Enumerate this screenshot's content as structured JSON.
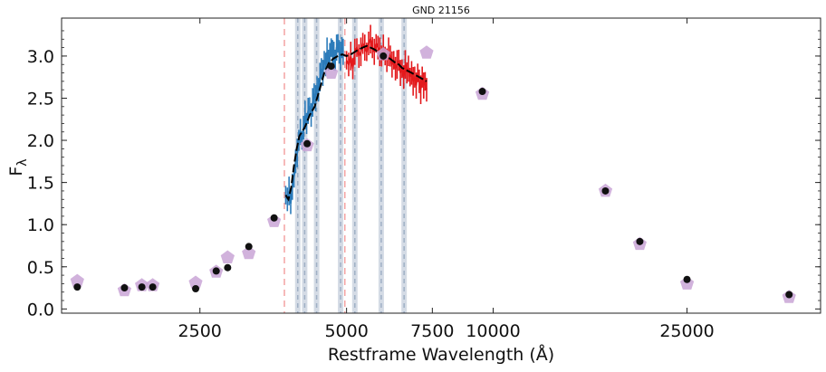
{
  "chart_data": {
    "type": "line",
    "title": "GND 21156",
    "xlabel": "Restframe Wavelength (Å)",
    "ylabel": "F",
    "ylabel_sub": "λ",
    "xscale": "log",
    "xlim": [
      1300,
      47000
    ],
    "ylim": [
      -0.05,
      3.45
    ],
    "xticks": [
      2500,
      5000,
      7500,
      10000,
      25000
    ],
    "xtick_labels": [
      "2500",
      "5000",
      "7500",
      "10000",
      "25000"
    ],
    "yticks": [
      0.0,
      0.5,
      1.0,
      1.5,
      2.0,
      2.5,
      3.0
    ],
    "ytick_labels": [
      "0.0",
      "0.5",
      "1.0",
      "1.5",
      "2.0",
      "2.5",
      "3.0"
    ],
    "colors": {
      "spectrum_blue": "#2b7bba",
      "spectrum_red": "#e3191c",
      "model_line": "#000000",
      "photometry": "#111111",
      "model_photometry": "#c9a4d6",
      "red_dashed": "#f4a3a3",
      "grey_band": "#c5cfdc",
      "grey_dashed": "#9fb0c5"
    },
    "red_dashed_lines": [
      3727,
      4960
    ],
    "grey_lines": [
      3970,
      4102,
      4340,
      4861,
      5200,
      5890,
      6563
    ],
    "series": [
      {
        "name": "spectrum_blue",
        "x": [
          3750,
          3780,
          3810,
          3840,
          3870,
          3900,
          3930,
          3960,
          3990,
          4020,
          4050,
          4080,
          4110,
          4140,
          4170,
          4200,
          4230,
          4260,
          4290,
          4320,
          4350,
          4380,
          4410,
          4440,
          4470,
          4500,
          4530,
          4560,
          4590,
          4620,
          4650,
          4680,
          4710,
          4740,
          4770,
          4800,
          4830,
          4860,
          4890,
          4920
        ],
        "y": [
          1.35,
          1.3,
          1.4,
          1.25,
          1.45,
          1.55,
          1.75,
          1.85,
          2.0,
          2.1,
          2.0,
          2.15,
          2.3,
          2.2,
          2.35,
          2.4,
          2.3,
          2.45,
          2.55,
          2.5,
          2.65,
          2.6,
          2.75,
          2.85,
          2.8,
          2.95,
          2.9,
          3.05,
          2.95,
          3.0,
          3.1,
          3.05,
          3.0,
          2.95,
          3.1,
          3.15,
          3.05,
          3.0,
          3.1,
          3.05
        ]
      },
      {
        "name": "spectrum_red",
        "x": [
          5000,
          5050,
          5100,
          5150,
          5200,
          5250,
          5300,
          5350,
          5400,
          5450,
          5500,
          5550,
          5600,
          5650,
          5700,
          5750,
          5800,
          5850,
          5900,
          5950,
          6000,
          6050,
          6100,
          6150,
          6200,
          6250,
          6300,
          6350,
          6400,
          6450,
          6500,
          6550,
          6600,
          6650,
          6700,
          6750,
          6800,
          6850,
          6900,
          6950,
          7000,
          7050,
          7100,
          7150,
          7200,
          7250,
          7300
        ],
        "y": [
          2.95,
          2.9,
          3.0,
          2.85,
          3.05,
          3.1,
          3.0,
          3.05,
          3.15,
          3.1,
          3.05,
          3.15,
          3.2,
          3.1,
          3.05,
          3.15,
          3.1,
          3.05,
          3.0,
          3.1,
          3.0,
          2.95,
          3.05,
          3.0,
          2.9,
          2.95,
          2.85,
          2.9,
          2.95,
          2.8,
          2.85,
          2.75,
          2.9,
          2.8,
          2.85,
          2.75,
          2.8,
          2.7,
          2.75,
          2.65,
          2.8,
          2.7,
          2.6,
          2.75,
          2.65,
          2.7,
          2.6
        ]
      },
      {
        "name": "model",
        "x": [
          3750,
          3800,
          3850,
          3900,
          3950,
          4000,
          4050,
          4100,
          4150,
          4200,
          4250,
          4300,
          4350,
          4400,
          4450,
          4500,
          4600,
          4700,
          4800,
          4900,
          5000,
          5100,
          5200,
          5300,
          5400,
          5500,
          5600,
          5700,
          5800,
          5900,
          6000,
          6100,
          6200,
          6300,
          6400,
          6500,
          6600,
          6700,
          6800,
          6900,
          7000,
          7100,
          7200,
          7300
        ],
        "y": [
          1.35,
          1.3,
          1.45,
          1.7,
          1.9,
          2.05,
          2.1,
          2.15,
          2.22,
          2.3,
          2.35,
          2.4,
          2.5,
          2.6,
          2.7,
          2.8,
          2.92,
          2.97,
          3.0,
          3.02,
          3.0,
          3.02,
          3.05,
          3.08,
          3.1,
          3.12,
          3.1,
          3.08,
          3.05,
          3.02,
          3.0,
          2.98,
          2.95,
          2.92,
          2.9,
          2.86,
          2.84,
          2.82,
          2.8,
          2.78,
          2.76,
          2.74,
          2.72,
          2.7
        ]
      },
      {
        "name": "photometry",
        "x": [
          1400,
          1750,
          1900,
          2000,
          2450,
          2700,
          2850,
          3150,
          3550,
          4150,
          4650,
          5950,
          9500,
          17000,
          20000,
          25000,
          40500
        ],
        "y": [
          0.26,
          0.25,
          0.26,
          0.26,
          0.24,
          0.45,
          0.49,
          0.74,
          1.08,
          1.96,
          2.88,
          3.0,
          2.58,
          1.4,
          0.8,
          0.35,
          0.17
        ]
      },
      {
        "name": "model_photometry",
        "x": [
          1400,
          1750,
          1900,
          2000,
          2450,
          2700,
          2850,
          3150,
          3550,
          4150,
          4650,
          5950,
          7300,
          9500,
          17000,
          20000,
          25000,
          40500
        ],
        "y": [
          0.33,
          0.22,
          0.28,
          0.28,
          0.31,
          0.44,
          0.61,
          0.66,
          1.04,
          1.94,
          2.8,
          3.02,
          3.04,
          2.55,
          1.4,
          0.77,
          0.3,
          0.14
        ]
      }
    ]
  }
}
